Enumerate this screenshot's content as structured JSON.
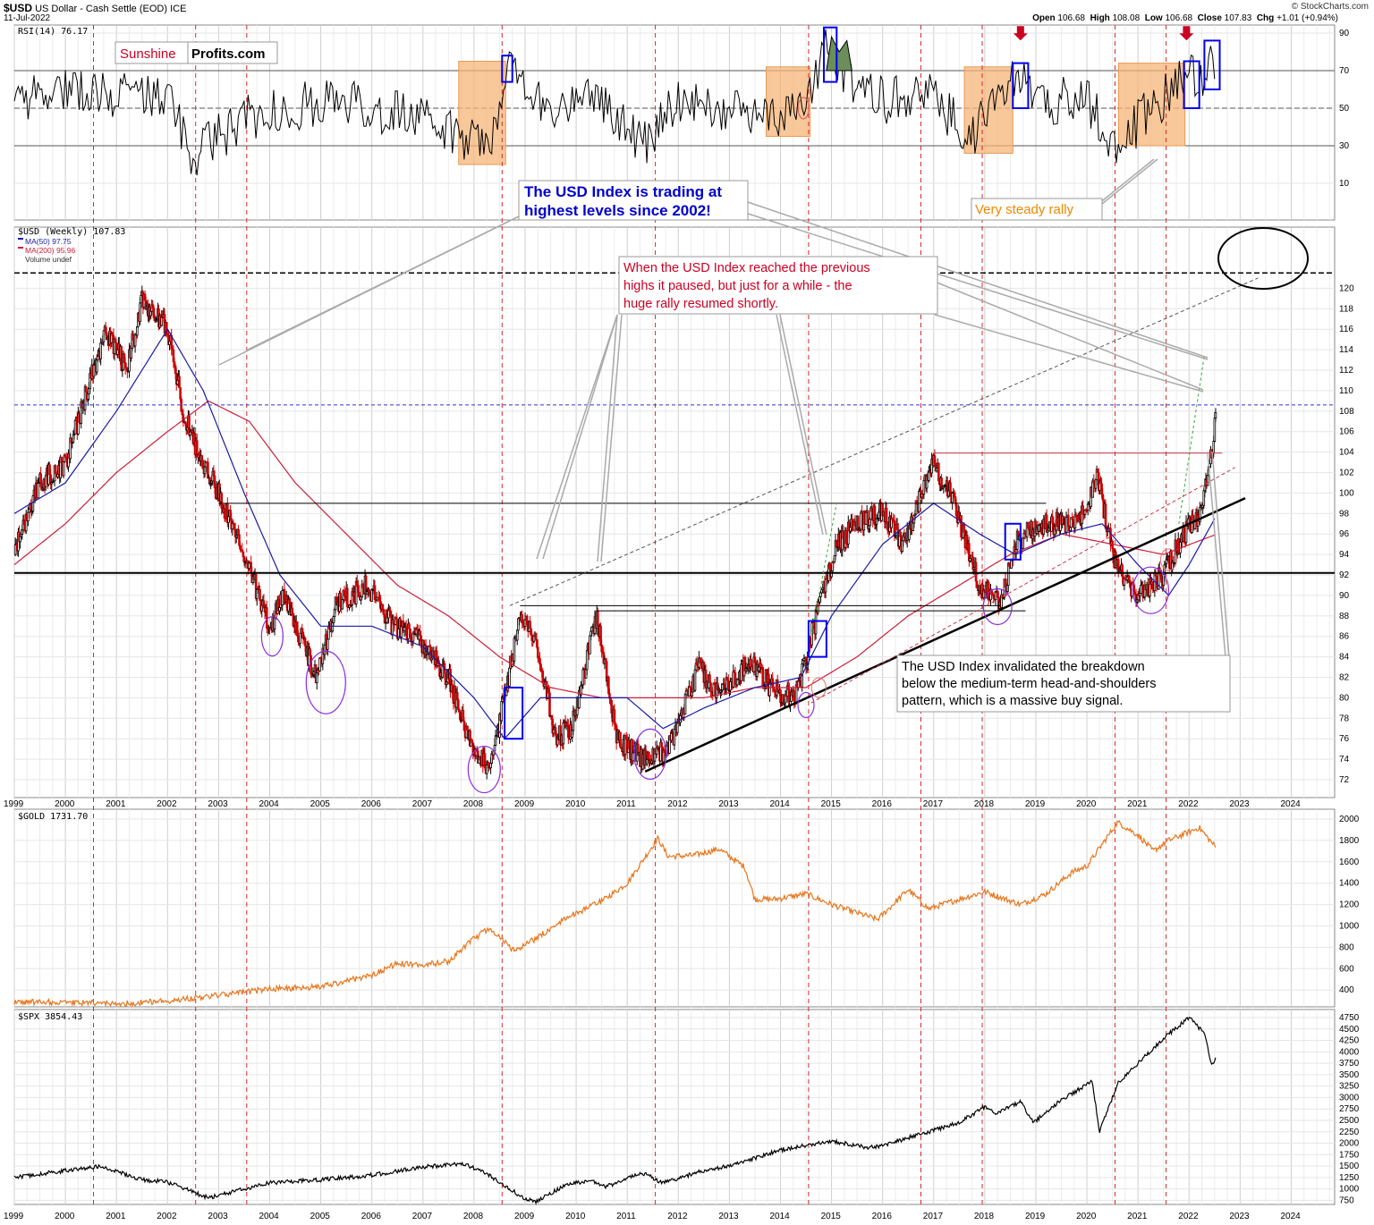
{
  "header": {
    "symbol": "$USD",
    "name": "US Dollar - Cash Settle (EOD)",
    "exchange": "ICE",
    "date": "11-Jul-2022",
    "credit": "© StockCharts.com",
    "ohlc": {
      "open_label": "Open",
      "open": "106.68",
      "high_label": "High",
      "high": "108.08",
      "low_label": "Low",
      "low": "106.68",
      "close_label": "Close",
      "close": "107.83",
      "chg_label": "Chg",
      "chg": "+1.01 (+0.94%)"
    }
  },
  "logo": {
    "part1": "Sunshine",
    "part2": "Profits.com"
  },
  "colors": {
    "price_up": "#000000",
    "price_down": "#cc0000",
    "ma50": "#1a1aa6",
    "ma200": "#cc1f3a",
    "gold": "#e8751a",
    "spx": "#000000",
    "event_line": "#d62828",
    "rsi_box": "#f5b57a",
    "blue_box": "#0000ee",
    "circle": "#8a2be2",
    "annot_red": "#cc0022",
    "annot_blue": "#0000cc",
    "annot_orange": "#ee8800"
  },
  "annotations": {
    "usd_high": "The USD Index is trading at highest levels since 2002!",
    "paused_line1": "When the USD Index reached the previous",
    "paused_line2": "highs it paused, but just for a while - the",
    "paused_line3": "huge rally resumed shortly.",
    "invalidated_line1": "The USD Index invalidated the breakdown",
    "invalidated_line2": "below the medium-term head-and-shoulders",
    "invalidated_line3": "pattern, which is a massive buy signal.",
    "steady_rally": "Very steady rally"
  },
  "chart_data": [
    {
      "panel": "rsi",
      "type": "line",
      "title": "RSI(14) 76.17",
      "y_ticks": [
        10,
        30,
        50,
        70,
        90
      ],
      "ylim": [
        0,
        100
      ],
      "reference_lines": [
        30,
        50,
        70
      ],
      "series": [
        {
          "name": "RSI(14)",
          "x": [
            1999.0,
            2000.0,
            2001.0,
            2002.0,
            2002.5,
            2003.5,
            2005.0,
            2006.5,
            2007.5,
            2008.3,
            2008.7,
            2009.5,
            2010.3,
            2011.3,
            2012.0,
            2013.0,
            2014.0,
            2014.5,
            2014.9,
            2015.3,
            2016.0,
            2017.0,
            2017.7,
            2018.5,
            2019.2,
            2020.0,
            2020.5,
            2021.0,
            2021.5,
            2021.9,
            2022.2,
            2022.53
          ],
          "values": [
            52,
            62,
            58,
            55,
            25,
            44,
            54,
            48,
            37,
            33,
            72,
            48,
            60,
            30,
            56,
            50,
            44,
            52,
            85,
            68,
            54,
            58,
            32,
            67,
            54,
            55,
            32,
            42,
            56,
            70,
            63,
            76
          ]
        }
      ]
    },
    {
      "panel": "usd",
      "type": "candlestick",
      "title": "$USD (Weekly) 107.83",
      "legend": [
        "MA(50) 97.75",
        "MA(200) 95.96",
        "Volume undef"
      ],
      "x_ticks": [
        "1999",
        "2000",
        "2001",
        "2002",
        "2003",
        "2004",
        "2005",
        "2006",
        "2007",
        "2008",
        "2009",
        "2010",
        "2011",
        "2012",
        "2013",
        "2014",
        "2015",
        "2016",
        "2017",
        "2018",
        "2019",
        "2020",
        "2021",
        "2022",
        "2023",
        "2024"
      ],
      "y_ticks": [
        72,
        74,
        76,
        78,
        80,
        82,
        84,
        86,
        88,
        90,
        92,
        94,
        96,
        98,
        100,
        102,
        104,
        106,
        108,
        110,
        112,
        114,
        116,
        118,
        120
      ],
      "ylim": [
        71,
        121.5
      ],
      "series": [
        {
          "name": "$USD",
          "x": [
            1999.0,
            1999.5,
            2000.0,
            2000.3,
            2000.8,
            2001.2,
            2001.5,
            2002.0,
            2002.3,
            2002.6,
            2003.0,
            2003.5,
            2004.0,
            2004.3,
            2004.9,
            2005.3,
            2005.9,
            2006.4,
            2006.9,
            2007.5,
            2007.9,
            2008.3,
            2008.6,
            2008.9,
            2009.2,
            2009.6,
            2009.9,
            2010.4,
            2010.8,
            2011.3,
            2011.8,
            2012.4,
            2012.8,
            2013.4,
            2013.8,
            2014.3,
            2014.6,
            2015.1,
            2015.5,
            2016.0,
            2016.4,
            2017.0,
            2017.4,
            2017.9,
            2018.3,
            2018.6,
            2019.0,
            2019.5,
            2020.0,
            2020.2,
            2020.5,
            2020.9,
            2021.2,
            2021.5,
            2021.9,
            2022.2,
            2022.45,
            2022.53
          ],
          "values": [
            94,
            101,
            103,
            108,
            116,
            112,
            119,
            116,
            108,
            104,
            100,
            94,
            87,
            90,
            82,
            89,
            91,
            87,
            86,
            82,
            76,
            73,
            80,
            88,
            86,
            76,
            77,
            88,
            76,
            74,
            75,
            83,
            80,
            84,
            81,
            80,
            86,
            95,
            97,
            98,
            95,
            103,
            99,
            91,
            89,
            95,
            97,
            97,
            98,
            102,
            94,
            90,
            91,
            92,
            96,
            98,
            104,
            107.83
          ]
        },
        {
          "name": "MA(50)",
          "x": [
            1999.0,
            2000.0,
            2001.0,
            2002.0,
            2002.7,
            2003.5,
            2004.2,
            2005.0,
            2006.0,
            2007.0,
            2008.0,
            2008.6,
            2009.3,
            2010.0,
            2011.0,
            2011.7,
            2012.5,
            2013.5,
            2014.4,
            2015.0,
            2016.0,
            2017.0,
            2017.9,
            2018.6,
            2019.5,
            2020.3,
            2021.0,
            2021.6,
            2022.0,
            2022.53
          ],
          "values": [
            98,
            101,
            108,
            116,
            110,
            100,
            92,
            87,
            87,
            85,
            80,
            76,
            80,
            80,
            80,
            77,
            79,
            81,
            82,
            88,
            95,
            99,
            96,
            94,
            96,
            97,
            93,
            90,
            93,
            97.75
          ]
        },
        {
          "name": "MA(200)",
          "x": [
            1999.0,
            2000.0,
            2001.0,
            2002.0,
            2002.8,
            2003.6,
            2004.5,
            2005.5,
            2006.5,
            2007.5,
            2008.5,
            2009.5,
            2010.5,
            2011.5,
            2012.5,
            2013.5,
            2014.5,
            2015.5,
            2016.5,
            2017.5,
            2018.5,
            2019.5,
            2020.5,
            2021.5,
            2022.53
          ],
          "values": [
            93,
            97,
            102,
            106,
            109,
            107,
            101,
            96,
            91,
            88,
            84,
            81,
            80,
            80,
            80,
            81,
            81,
            84,
            88,
            91,
            94,
            96,
            95,
            94,
            95.96
          ]
        }
      ]
    },
    {
      "panel": "gold",
      "type": "line",
      "title": "$GOLD 1731.70",
      "y_ticks": [
        400,
        600,
        800,
        1000,
        1200,
        1400,
        1600,
        1800,
        2000
      ],
      "ylim": [
        250,
        2080
      ],
      "series": [
        {
          "name": "$GOLD",
          "x": [
            1999.0,
            2000.0,
            2001.0,
            2002.0,
            2003.0,
            2004.0,
            2005.0,
            2006.0,
            2006.5,
            2007.0,
            2007.5,
            2008.0,
            2008.3,
            2008.8,
            2009.3,
            2009.9,
            2010.5,
            2011.0,
            2011.6,
            2011.8,
            2012.3,
            2012.8,
            2013.3,
            2013.5,
            2013.9,
            2014.5,
            2015.0,
            2015.9,
            2016.5,
            2016.9,
            2017.5,
            2018.0,
            2018.7,
            2019.2,
            2019.7,
            2020.0,
            2020.6,
            2021.0,
            2021.3,
            2021.6,
            2022.2,
            2022.53
          ],
          "values": [
            290,
            285,
            270,
            300,
            350,
            410,
            430,
            540,
            650,
            630,
            670,
            880,
            980,
            760,
            910,
            1100,
            1230,
            1400,
            1820,
            1650,
            1660,
            1720,
            1550,
            1250,
            1250,
            1300,
            1200,
            1060,
            1340,
            1160,
            1250,
            1320,
            1200,
            1300,
            1500,
            1560,
            1970,
            1850,
            1700,
            1800,
            1920,
            1731.7
          ]
        }
      ]
    },
    {
      "panel": "spx",
      "type": "line",
      "title": "$SPX 3854.43",
      "x_ticks": [
        "1999",
        "2000",
        "2001",
        "2002",
        "2003",
        "2004",
        "2005",
        "2006",
        "2007",
        "2008",
        "2009",
        "2010",
        "2011",
        "2012",
        "2013",
        "2014",
        "2015",
        "2016",
        "2017",
        "2018",
        "2019",
        "2020",
        "2021",
        "2022",
        "2023",
        "2024"
      ],
      "y_ticks": [
        750,
        1000,
        1250,
        1500,
        1750,
        2000,
        2250,
        2500,
        2750,
        3000,
        3250,
        3500,
        3750,
        4000,
        4250,
        4500,
        4750
      ],
      "ylim": [
        650,
        4850
      ],
      "series": [
        {
          "name": "$SPX",
          "x": [
            1999.0,
            2000.0,
            2000.7,
            2001.5,
            2002.0,
            2002.8,
            2003.5,
            2004.0,
            2005.0,
            2006.0,
            2007.0,
            2007.8,
            2008.3,
            2008.9,
            2009.2,
            2009.8,
            2010.3,
            2010.6,
            2011.3,
            2011.7,
            2012.5,
            2013.0,
            2014.0,
            2015.0,
            2015.7,
            2016.0,
            2016.9,
            2017.5,
            2018.0,
            2018.2,
            2018.7,
            2018.95,
            2019.5,
            2020.1,
            2020.25,
            2020.6,
            2021.0,
            2021.5,
            2022.0,
            2022.3,
            2022.45,
            2022.53
          ],
          "values": [
            1250,
            1400,
            1500,
            1200,
            1150,
            800,
            1000,
            1130,
            1200,
            1300,
            1480,
            1550,
            1300,
            850,
            700,
            1100,
            1180,
            1050,
            1350,
            1130,
            1400,
            1500,
            1850,
            2050,
            1900,
            1950,
            2250,
            2450,
            2800,
            2650,
            2900,
            2450,
            2950,
            3350,
            2250,
            3300,
            3750,
            4300,
            4750,
            4400,
            3700,
            3854.43
          ]
        }
      ]
    }
  ]
}
